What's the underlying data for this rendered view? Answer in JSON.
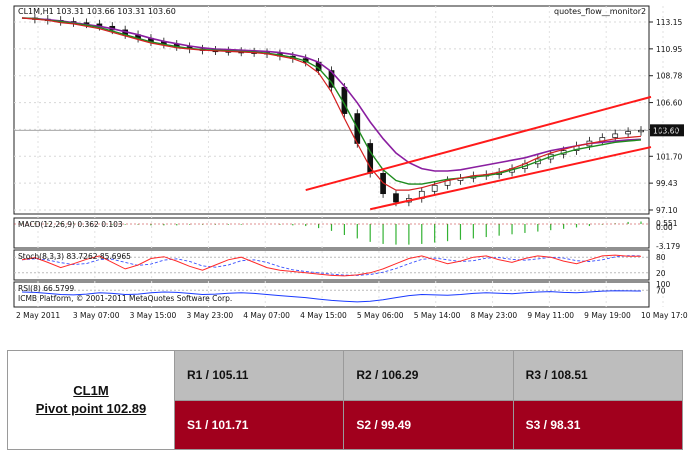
{
  "chart_data": {
    "type": "candlestick",
    "symbol_line": "CL1M,H1  103.31 103.66 103.31 103.60",
    "indicator_name": "quotes_flow__monitor2",
    "current_price_label": "103.60",
    "price_ticks": [
      "113.15",
      "110.95",
      "108.78",
      "106.60",
      "104.42",
      "101.70",
      "99.43",
      "97.10"
    ],
    "time_ticks": [
      "2 May 2011",
      "3 May 07:00",
      "3 May 15:00",
      "3 May 23:00",
      "4 May 07:00",
      "4 May 15:00",
      "5 May 06:00",
      "5 May 14:00",
      "8 May 23:00",
      "9 May 11:00",
      "9 May 19:00",
      "10 May 17:00"
    ],
    "ylim": [
      96.6,
      114.0
    ],
    "price_path": [
      113.0,
      112.9,
      112.8,
      112.7,
      112.6,
      112.5,
      112.3,
      112.0,
      111.6,
      111.3,
      111.0,
      110.8,
      110.6,
      110.4,
      110.3,
      110.25,
      110.2,
      110.15,
      110.1,
      110.0,
      109.8,
      109.6,
      109.3,
      108.6,
      107.2,
      105.0,
      102.5,
      100.0,
      98.3,
      97.6,
      97.9,
      98.5,
      99.0,
      99.4,
      99.6,
      99.8,
      99.9,
      100.1,
      100.4,
      100.8,
      101.2,
      101.6,
      101.9,
      102.3,
      102.7,
      103.0,
      103.3,
      103.5,
      103.6
    ],
    "ma_fast": [
      113.0,
      112.9,
      112.8,
      112.6,
      112.5,
      112.3,
      112.1,
      111.8,
      111.5,
      111.2,
      110.9,
      110.7,
      110.5,
      110.4,
      110.3,
      110.25,
      110.2,
      110.15,
      110.1,
      110.0,
      109.8,
      109.6,
      109.2,
      108.4,
      106.8,
      104.6,
      102.5,
      100.5,
      99.2,
      98.6,
      98.6,
      98.8,
      99.1,
      99.4,
      99.6,
      99.8,
      99.9,
      100.1,
      100.4,
      100.8,
      101.3,
      101.7,
      102.0,
      102.3,
      102.5,
      102.7,
      102.9,
      103.0,
      103.1
    ],
    "ma_mid": [
      113.0,
      112.95,
      112.8,
      112.7,
      112.55,
      112.4,
      112.2,
      111.9,
      111.6,
      111.3,
      111.0,
      110.8,
      110.6,
      110.45,
      110.35,
      110.3,
      110.25,
      110.2,
      110.15,
      110.05,
      109.9,
      109.7,
      109.4,
      108.8,
      107.6,
      105.8,
      103.8,
      101.8,
      100.3,
      99.4,
      99.1,
      99.1,
      99.3,
      99.5,
      99.6,
      99.7,
      99.8,
      100.0,
      100.3,
      100.6,
      101.0,
      101.4,
      101.7,
      102.0,
      102.2,
      102.4,
      102.6,
      102.7,
      102.8
    ],
    "ma_slow": [
      113.0,
      112.95,
      112.85,
      112.75,
      112.6,
      112.45,
      112.3,
      112.1,
      111.85,
      111.6,
      111.3,
      111.05,
      110.85,
      110.65,
      110.5,
      110.4,
      110.35,
      110.3,
      110.25,
      110.2,
      110.1,
      109.95,
      109.7,
      109.3,
      108.5,
      107.3,
      105.9,
      104.3,
      102.9,
      101.7,
      100.9,
      100.4,
      100.2,
      100.2,
      100.3,
      100.5,
      100.7,
      100.9,
      101.1,
      101.3,
      101.6,
      101.9,
      102.1,
      102.3,
      102.5,
      102.6,
      102.7,
      102.8,
      102.85
    ],
    "channel_upper": [
      [
        22,
        98.6
      ],
      [
        48,
        106.4
      ]
    ],
    "channel_lower": [
      [
        27,
        97.0
      ],
      [
        48,
        102.2
      ]
    ],
    "macd_label": "MACD(12,26,9) 0.362 0.103",
    "macd_ticks": [
      "0.551",
      "0.00",
      "-3.179"
    ],
    "macd_hist": [
      0.1,
      0.1,
      0.1,
      0.1,
      0.1,
      0.0,
      0.0,
      -0.1,
      -0.1,
      -0.1,
      -0.2,
      -0.2,
      -0.2,
      -0.1,
      -0.1,
      -0.1,
      -0.1,
      -0.1,
      0.0,
      0.0,
      -0.1,
      -0.2,
      -0.3,
      -0.6,
      -1.0,
      -1.6,
      -2.1,
      -2.6,
      -2.9,
      -3.0,
      -3.0,
      -2.9,
      -2.7,
      -2.5,
      -2.3,
      -2.1,
      -1.9,
      -1.7,
      -1.5,
      -1.3,
      -1.1,
      -0.9,
      -0.7,
      -0.5,
      -0.3,
      -0.1,
      0.1,
      0.3,
      0.36
    ],
    "stoch_label": "Stoch(8,3,3) 83.7262 85.6965",
    "stoch_ticks": [
      "80",
      "20"
    ],
    "stoch_k": [
      70,
      78,
      60,
      40,
      55,
      72,
      85,
      60,
      35,
      50,
      75,
      82,
      65,
      45,
      30,
      50,
      70,
      80,
      60,
      40,
      30,
      25,
      20,
      15,
      10,
      8,
      12,
      20,
      35,
      55,
      75,
      85,
      70,
      55,
      65,
      80,
      85,
      70,
      60,
      75,
      85,
      80,
      65,
      55,
      70,
      85,
      88,
      84,
      83.7
    ],
    "rsi_label": "RSI(8) 66.5799",
    "rsi_ticks": [
      "100",
      "70"
    ],
    "copyright": "ICMB Platform, © 2001-2011 MetaQuotes Software Corp.",
    "rsi_values": [
      62,
      60,
      55,
      50,
      48,
      52,
      58,
      55,
      50,
      52,
      58,
      62,
      60,
      55,
      50,
      52,
      56,
      58,
      55,
      50,
      45,
      40,
      35,
      28,
      22,
      18,
      15,
      18,
      25,
      35,
      45,
      50,
      48,
      46,
      50,
      55,
      58,
      56,
      54,
      58,
      62,
      64,
      60,
      58,
      62,
      66,
      68,
      67,
      66.6
    ]
  },
  "pivot_table": {
    "symbol": "CL1M",
    "pivot": "Pivot point 102.89",
    "r1": "R1 / 105.11",
    "r2": "R2 / 106.29",
    "r3": "R3 / 108.51",
    "s1": "S1 / 101.71",
    "s2": "S2 /  99.49",
    "s3": "S3 /  98.31"
  },
  "colors": {
    "ma_fast": "#d42020",
    "ma_mid": "#1e8b1e",
    "ma_slow": "#8a1ea0",
    "channel": "#ff1a1a",
    "stoch_k": "#ff2a2a",
    "stoch_d": "#3a50ff",
    "rsi": "#1a3aff",
    "macd_hist": "#33b233",
    "resistance_bg": "#bdbdbd",
    "support_bg": "#a1001d"
  }
}
